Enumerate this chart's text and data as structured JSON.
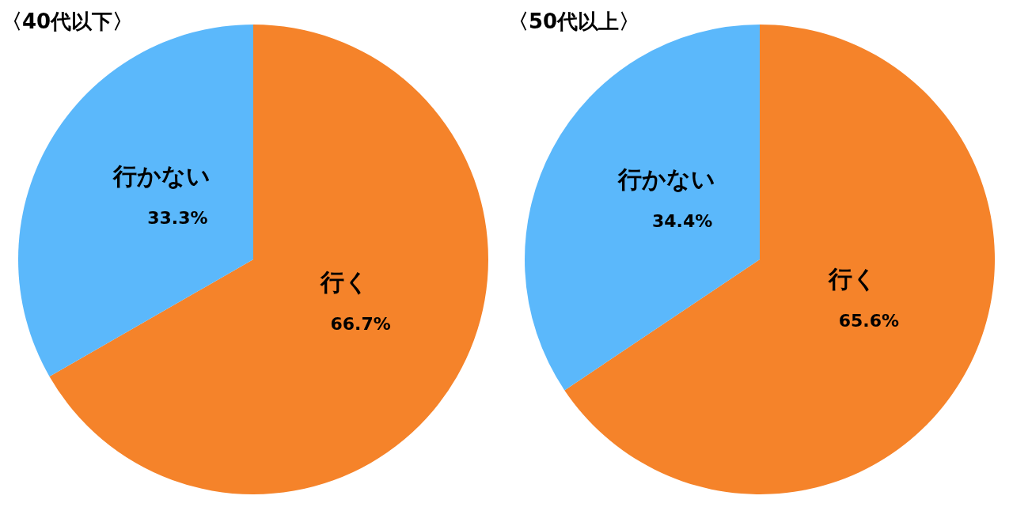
{
  "chart_data": [
    {
      "type": "pie",
      "title": "〈40代以下〉",
      "categories": [
        "行く",
        "行かない"
      ],
      "values": [
        66.7,
        33.3
      ],
      "colors": [
        "#f5832a",
        "#5bb8fb"
      ],
      "value_labels": [
        "66.7%",
        "33.3%"
      ]
    },
    {
      "type": "pie",
      "title": "〈50代以上〉",
      "categories": [
        "行く",
        "行かない"
      ],
      "values": [
        65.6,
        34.4
      ],
      "colors": [
        "#f5832a",
        "#5bb8fb"
      ],
      "value_labels": [
        "65.6%",
        "34.4%"
      ]
    }
  ]
}
